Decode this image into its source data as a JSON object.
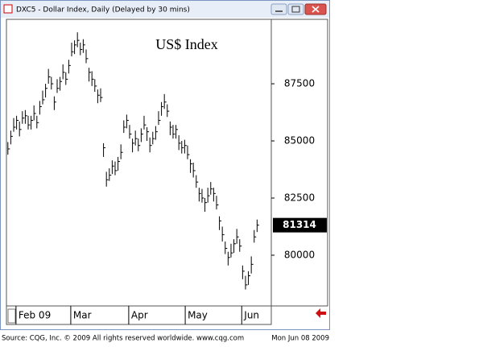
{
  "window": {
    "title": "DXC5 - Dollar Index, Daily (Delayed by 30 mins)"
  },
  "footer": {
    "source": "Source: CQG, Inc. © 2009 All rights reserved worldwide. www.cqg.com",
    "date": "Mon Jun 08 2009"
  },
  "chart_data": {
    "type": "ohlc",
    "title": "US$ Index",
    "xlim": [
      -0.5,
      90.9
    ],
    "ylim": [
      77780,
      90320
    ],
    "xticks": [
      {
        "value": 2.8,
        "label": "Feb 09"
      },
      {
        "value": 21.7,
        "label": "Mar"
      },
      {
        "value": 41.7,
        "label": "Apr"
      },
      {
        "value": 61.2,
        "label": "May"
      },
      {
        "value": 80.7,
        "label": "Jun"
      }
    ],
    "yticks": [
      80000,
      82500,
      85000,
      87500
    ],
    "series": [
      {
        "color": "#000000",
        "high": [
          84950,
          85450,
          86000,
          86100,
          85850,
          86300,
          86350,
          86100,
          86100,
          86550,
          86100,
          86750,
          87200,
          87500,
          88150,
          87800,
          86950,
          87700,
          87800,
          88350,
          88000,
          88550,
          89300,
          89400,
          89750,
          89300,
          89450,
          89000,
          88200,
          88050,
          87700,
          87250,
          87300,
          84900,
          83650,
          83800,
          84150,
          84100,
          84300,
          84850,
          85900,
          86150,
          85700,
          85100,
          85450,
          85100,
          85550,
          86100,
          85600,
          85150,
          85400,
          85650,
          86300,
          86700,
          87050,
          86600,
          85850,
          85700,
          85700,
          85250,
          85000,
          85050,
          84800,
          84200,
          84050,
          83500,
          82950,
          82900,
          82500,
          82950,
          83200,
          82950,
          82600,
          81700,
          81250,
          80600,
          80150,
          80500,
          80700,
          81150,
          80700,
          79550,
          79100,
          79300,
          79950,
          81100,
          81560
        ],
        "low": [
          84400,
          84850,
          85400,
          85500,
          85200,
          85750,
          85750,
          85500,
          85500,
          85900,
          85550,
          86150,
          86600,
          86900,
          87500,
          87250,
          86350,
          87100,
          87200,
          87700,
          87450,
          87950,
          88700,
          88800,
          89100,
          88750,
          88850,
          88400,
          87600,
          87400,
          87150,
          86650,
          86700,
          84300,
          83000,
          83250,
          83550,
          83500,
          83700,
          84200,
          85350,
          85550,
          85100,
          84500,
          84800,
          84550,
          84950,
          85500,
          85000,
          84500,
          84850,
          85050,
          85700,
          86100,
          86400,
          86050,
          85250,
          85100,
          85100,
          84600,
          84450,
          84450,
          84200,
          83600,
          83400,
          82950,
          82350,
          82300,
          81900,
          82300,
          82650,
          82350,
          82000,
          81100,
          80600,
          80050,
          79550,
          79900,
          80100,
          80500,
          80150,
          78950,
          78500,
          78700,
          79200,
          80550,
          81014
        ],
        "close": [
          84650,
          85200,
          85600,
          85900,
          85500,
          86000,
          86100,
          85700,
          85900,
          86200,
          85800,
          86500,
          86800,
          87300,
          87800,
          87500,
          86700,
          87300,
          87600,
          88000,
          87700,
          88300,
          88900,
          89200,
          89400,
          89000,
          89200,
          88600,
          88000,
          87700,
          87400,
          87000,
          86900,
          84700,
          83300,
          83500,
          83900,
          83700,
          84100,
          84500,
          85600,
          85900,
          85300,
          84900,
          85100,
          84800,
          85300,
          85700,
          85400,
          84800,
          85100,
          85400,
          85900,
          86500,
          86700,
          86300,
          85600,
          85300,
          85500,
          84900,
          84700,
          84800,
          84400,
          84000,
          83700,
          83200,
          82700,
          82500,
          82300,
          82600,
          82900,
          82700,
          82200,
          81500,
          80900,
          80300,
          79900,
          80100,
          80500,
          80800,
          80400,
          79300,
          78700,
          79100,
          79600,
          80800,
          81314
        ]
      }
    ]
  }
}
